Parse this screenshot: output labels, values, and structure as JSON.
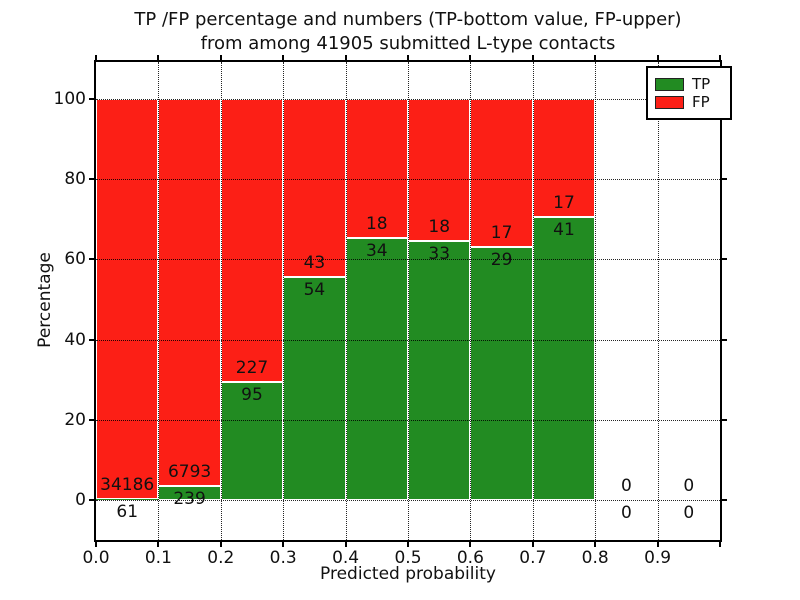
{
  "title": {
    "line1": "TP /FP percentage and numbers (TP-bottom value, FP-upper)",
    "line2": "from among 41905 submitted L-type contacts"
  },
  "chart_data": {
    "type": "bar",
    "variant": "stacked-percentage",
    "title": "TP /FP percentage and numbers (TP-bottom value, FP-upper)\nfrom among 41905 submitted L-type contacts",
    "xlabel": "Predicted probability",
    "ylabel": "Percentage",
    "total_contacts": 41905,
    "bin_width": 0.1,
    "bin_starts": [
      0.0,
      0.1,
      0.2,
      0.3,
      0.4,
      0.5,
      0.6,
      0.7,
      0.8,
      0.9
    ],
    "xticklabels": [
      "0.0",
      "0.1",
      "0.2",
      "0.3",
      "0.4",
      "0.5",
      "0.6",
      "0.7",
      "0.8",
      "0.9"
    ],
    "yticks": [
      0,
      20,
      40,
      60,
      80,
      100
    ],
    "xlim": [
      0.0,
      1.0
    ],
    "ylim": [
      -10,
      110
    ],
    "grid": "dotted",
    "bar_edge_color": "#ffffff",
    "annotation_note": "FP count above TP-segment top, TP count below",
    "legend": {
      "position": "upper-right",
      "entries": [
        {
          "label": "TP",
          "color": "#228b22"
        },
        {
          "label": "FP",
          "color": "#fc1f16"
        }
      ]
    },
    "series": [
      {
        "name": "TP",
        "color": "#228b22",
        "counts": [
          61,
          239,
          95,
          54,
          34,
          33,
          29,
          41,
          0,
          0
        ]
      },
      {
        "name": "FP",
        "color": "#fc1f16",
        "counts": [
          34186,
          6793,
          227,
          43,
          18,
          18,
          17,
          17,
          0,
          0
        ]
      }
    ]
  }
}
